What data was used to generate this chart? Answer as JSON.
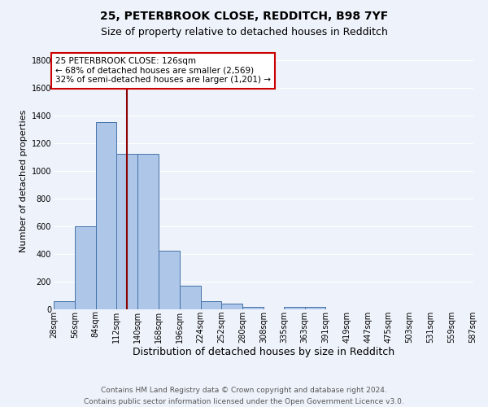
{
  "title1": "25, PETERBROOK CLOSE, REDDITCH, B98 7YF",
  "title2": "Size of property relative to detached houses in Redditch",
  "xlabel": "Distribution of detached houses by size in Redditch",
  "ylabel": "Number of detached properties",
  "bin_labels": [
    "28sqm",
    "56sqm",
    "84sqm",
    "112sqm",
    "140sqm",
    "168sqm",
    "196sqm",
    "224sqm",
    "252sqm",
    "280sqm",
    "308sqm",
    "335sqm",
    "363sqm",
    "391sqm",
    "419sqm",
    "447sqm",
    "475sqm",
    "503sqm",
    "531sqm",
    "559sqm",
    "587sqm"
  ],
  "bin_edges": [
    28,
    56,
    84,
    112,
    140,
    168,
    196,
    224,
    252,
    280,
    308,
    335,
    363,
    391,
    419,
    447,
    475,
    503,
    531,
    559,
    587
  ],
  "bar_values": [
    60,
    600,
    1350,
    1120,
    1120,
    425,
    170,
    60,
    40,
    15,
    0,
    20,
    20,
    0,
    0,
    0,
    0,
    0,
    0,
    0
  ],
  "bar_color": "#aec6e8",
  "bar_edge_color": "#4472a8",
  "vline_x": 126,
  "vline_color": "#8b0000",
  "annotation_text": "25 PETERBROOK CLOSE: 126sqm\n← 68% of detached houses are smaller (2,569)\n32% of semi-detached houses are larger (1,201) →",
  "annotation_box_color": "#ffffff",
  "annotation_box_edge": "#cc0000",
  "ylim": [
    0,
    1850
  ],
  "yticks": [
    0,
    200,
    400,
    600,
    800,
    1000,
    1200,
    1400,
    1600,
    1800
  ],
  "bg_color": "#eef3fb",
  "grid_color": "#ffffff",
  "footer": "Contains HM Land Registry data © Crown copyright and database right 2024.\nContains public sector information licensed under the Open Government Licence v3.0.",
  "title1_fontsize": 10,
  "title2_fontsize": 9,
  "xlabel_fontsize": 9,
  "ylabel_fontsize": 8,
  "tick_fontsize": 7,
  "annotation_fontsize": 7.5,
  "footer_fontsize": 6.5
}
